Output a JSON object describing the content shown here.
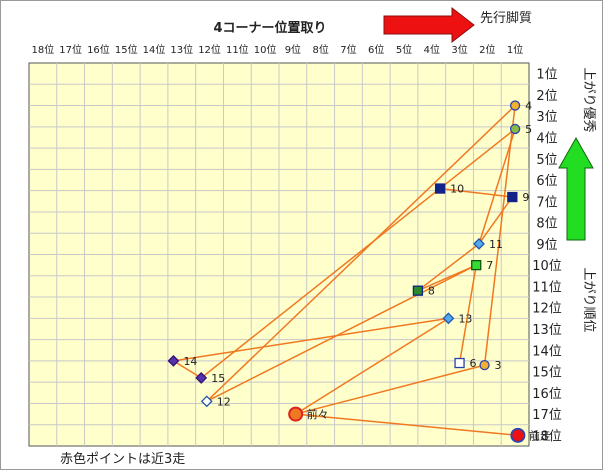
{
  "chart_data": {
    "type": "scatter",
    "title": "4コーナー位置取り",
    "x_label_right": "先行脚質",
    "y_label_top": "上がり優秀",
    "y_label_side": "上がり順位",
    "footnote": "赤色ポイントは近3走",
    "x_ticks": [
      "18位",
      "17位",
      "16位",
      "15位",
      "14位",
      "13位",
      "12位",
      "11位",
      "10位",
      "9位",
      "8位",
      "7位",
      "6位",
      "5位",
      "4位",
      "3位",
      "2位",
      "1位"
    ],
    "y_ticks": [
      "1位",
      "2位",
      "3位",
      "4位",
      "5位",
      "6位",
      "7位",
      "8位",
      "9位",
      "10位",
      "11位",
      "12位",
      "13位",
      "14位",
      "15位",
      "16位",
      "17位",
      "18位"
    ],
    "xlim": [
      18.5,
      0.5
    ],
    "ylim": [
      0.5,
      18.5
    ],
    "grid": true,
    "colors": {
      "plot_bg": "#ffffcc",
      "grid": "#c8c8c8",
      "line": "#f07820",
      "arrow_right": "#ee1111",
      "arrow_up": "#22dd22"
    },
    "points": [
      {
        "label": "4",
        "x": 1.0,
        "y": 2.5,
        "marker": "circle",
        "fill": "#f0b030",
        "edge": "#3344aa"
      },
      {
        "label": "5",
        "x": 1.0,
        "y": 3.6,
        "marker": "circle",
        "fill": "#88bb44",
        "edge": "#3344aa"
      },
      {
        "label": "9",
        "x": 1.1,
        "y": 6.8,
        "marker": "square",
        "fill": "#112288",
        "edge": "#112288"
      },
      {
        "label": "10",
        "x": 3.7,
        "y": 6.4,
        "marker": "square",
        "fill": "#112288",
        "edge": "#112288"
      },
      {
        "label": "11",
        "x": 2.3,
        "y": 9.0,
        "marker": "diamond",
        "fill": "#55aaee",
        "edge": "#2255aa"
      },
      {
        "label": "7",
        "x": 2.4,
        "y": 10.0,
        "marker": "square",
        "fill": "#33dd33",
        "edge": "#115511"
      },
      {
        "label": "8",
        "x": 4.5,
        "y": 11.2,
        "marker": "square",
        "fill": "#2a8a2a",
        "edge": "#112288"
      },
      {
        "label": "13",
        "x": 3.4,
        "y": 12.5,
        "marker": "diamond",
        "fill": "#55aaee",
        "edge": "#2255aa"
      },
      {
        "label": "6",
        "x": 3.0,
        "y": 14.6,
        "marker": "square",
        "fill": "#ffffff",
        "edge": "#2244aa"
      },
      {
        "label": "3",
        "x": 2.1,
        "y": 14.7,
        "marker": "circle",
        "fill": "#f0b030",
        "edge": "#3344aa"
      },
      {
        "label": "14",
        "x": 13.3,
        "y": 14.5,
        "marker": "diamond",
        "fill": "#5533aa",
        "edge": "#331177"
      },
      {
        "label": "15",
        "x": 12.3,
        "y": 15.3,
        "marker": "diamond",
        "fill": "#5533aa",
        "edge": "#331177"
      },
      {
        "label": "12",
        "x": 12.1,
        "y": 16.4,
        "marker": "diamond",
        "fill": "#ffffff",
        "edge": "#2255aa"
      },
      {
        "label": "前々",
        "x": 8.9,
        "y": 17.0,
        "marker": "circle",
        "fill": "#f07820",
        "edge": "#dd2222",
        "big": true
      },
      {
        "label": "前走",
        "x": 0.9,
        "y": 18.0,
        "marker": "circle",
        "fill": "#ee1111",
        "edge": "#3344aa",
        "big": true
      }
    ],
    "lines": [
      [
        "4",
        "12"
      ],
      [
        "5",
        "15"
      ],
      [
        "5",
        "11"
      ],
      [
        "4",
        "3"
      ],
      [
        "9",
        "10"
      ],
      [
        "9",
        "11"
      ],
      [
        "11",
        "8"
      ],
      [
        "7",
        "8"
      ],
      [
        "7",
        "6"
      ],
      [
        "7",
        "12"
      ],
      [
        "13",
        "14"
      ],
      [
        "13",
        "前々"
      ],
      [
        "3",
        "前々"
      ],
      [
        "前々",
        "前走"
      ],
      [
        "14",
        "15"
      ]
    ]
  }
}
